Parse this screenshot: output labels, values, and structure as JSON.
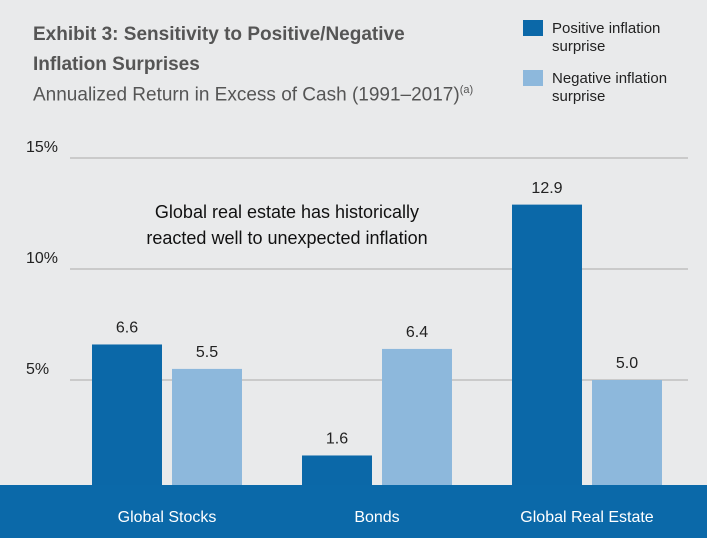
{
  "chart_data": {
    "type": "bar",
    "title": "Exhibit 3: Sensitivity to Positive/Negative Inflation Surprises",
    "subtitle": "Annualized Return in Excess of Cash (1991–2017)",
    "subtitle_note": "(a)",
    "annotation": "Global real estate has historically reacted well to unexpected inflation",
    "categories": [
      "Global Stocks",
      "Bonds",
      "Global Real Estate"
    ],
    "series": [
      {
        "name": "Positive inflation surprise",
        "color": "#0b68a8",
        "values": [
          6.6,
          1.6,
          12.9
        ],
        "value_labels": [
          "6.6",
          "1.6",
          "12.9"
        ]
      },
      {
        "name": "Negative inflation surprise",
        "color": "#8db8dc",
        "values": [
          5.5,
          6.4,
          5.0
        ],
        "value_labels": [
          "5.5",
          "6.4",
          "5.0"
        ]
      }
    ],
    "ylim": [
      0,
      15
    ],
    "yticks": [
      {
        "value": 5,
        "label": "5%"
      },
      {
        "value": 10,
        "label": "10%"
      },
      {
        "value": 15,
        "label": "15%"
      }
    ],
    "grid": true,
    "legend": "top-right"
  }
}
